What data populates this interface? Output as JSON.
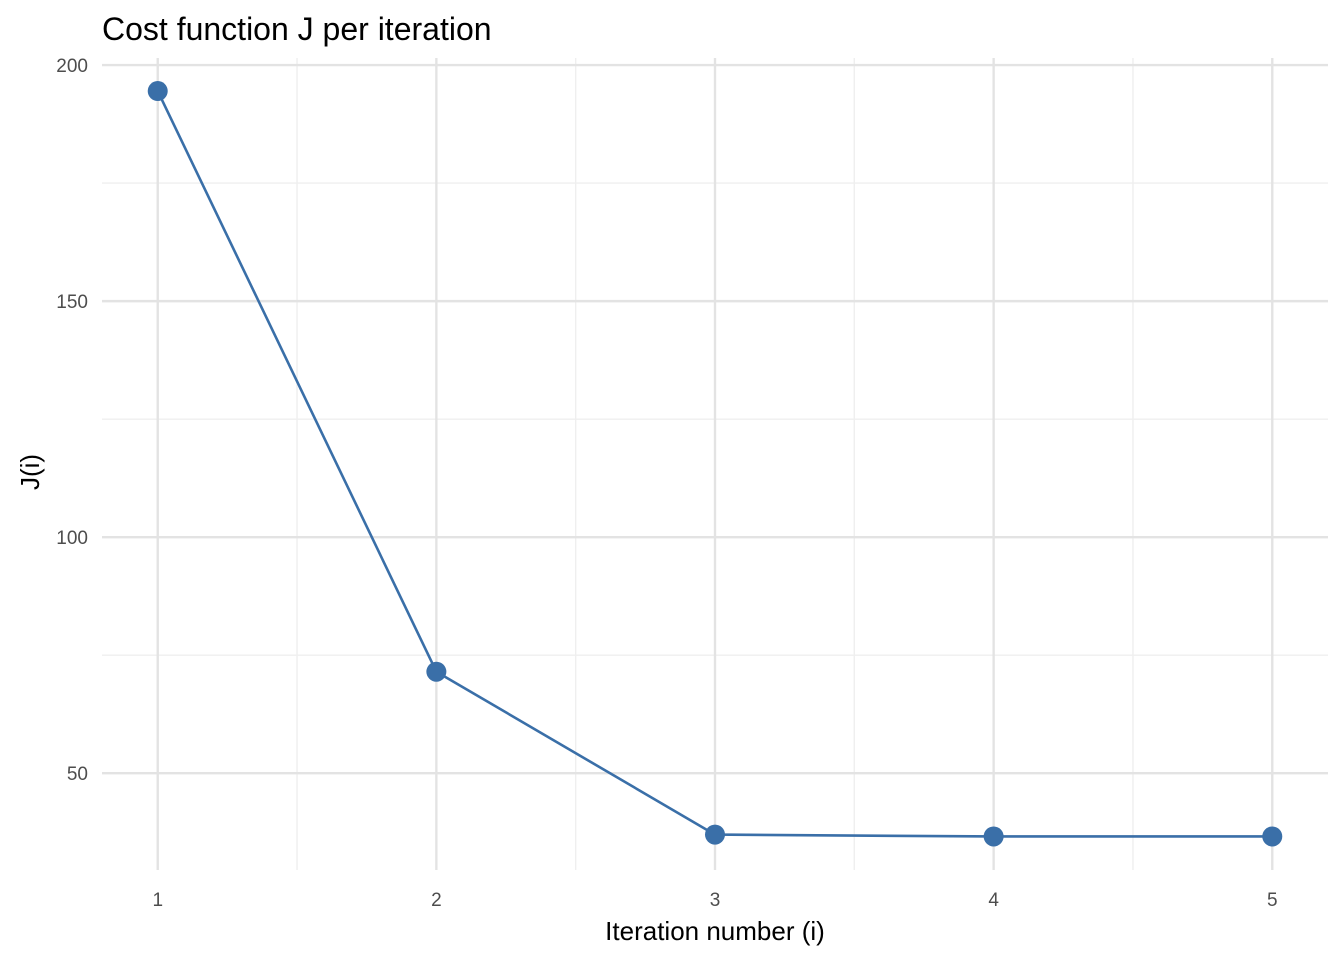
{
  "chart_data": {
    "type": "line",
    "title": "Cost function J per iteration",
    "xlabel": "Iteration number (i)",
    "ylabel": "J(i)",
    "x": [
      1,
      2,
      3,
      4,
      5
    ],
    "series": [
      {
        "values": [
          194.5,
          71.5,
          37.0,
          36.6,
          36.6
        ]
      }
    ],
    "xlim": [
      0.8,
      5.2
    ],
    "ylim": [
      29.5,
      201.5
    ],
    "xticks": [
      1,
      2,
      3,
      4,
      5
    ],
    "yticks": [
      50,
      100,
      150,
      200
    ],
    "grid": true,
    "legend": "none",
    "colors": {
      "series": "#3a6fa8",
      "grid_major": "#e3e3e3",
      "grid_minor": "#efefef"
    }
  }
}
